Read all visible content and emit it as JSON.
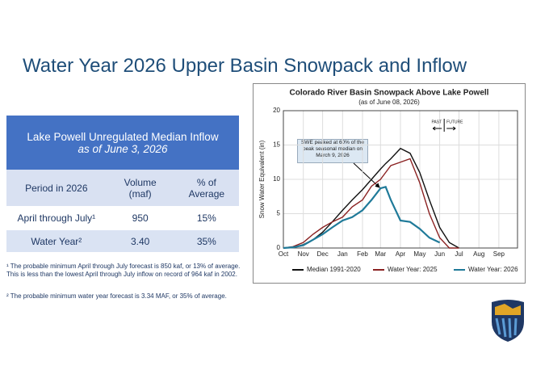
{
  "title": "Water Year 2026 Upper Basin Snowpack and Inflow",
  "table": {
    "title": "Lake Powell Unregulated Median Inflow",
    "subtitle": "as of June 3, 2026",
    "header": [
      "Period in 2026",
      "Volume (maf)",
      "% of Average"
    ],
    "rows": [
      [
        "April through July¹",
        "950",
        "15%"
      ],
      [
        "Water Year²",
        "3.40",
        "35%"
      ]
    ]
  },
  "footnotes": [
    "¹ The probable minimum April through July forecast is 850 kaf, or 13% of average. This is less than the lowest April through July inflow on record of 964 kaf in 2002.",
    "² The probable minimum water year forecast is 3.34 MAF, or 35% of average."
  ],
  "chart_data": {
    "type": "line",
    "title": "Colorado River Basin Snowpack Above Lake Powell",
    "subtitle": "(as of June 08, 2026)",
    "y_label": "Snow Water Equivalent (in)",
    "annotation": "SWE peaked at 60% of the peak seasonal median on March 9, 2026",
    "past_label": "PAST",
    "future_label": "FUTURE",
    "divider": 250,
    "x": [
      0,
      15,
      31,
      46,
      61,
      76,
      92,
      107,
      123,
      137,
      151,
      159,
      167,
      182,
      197,
      212,
      227,
      243,
      258,
      273
    ],
    "xlim": [
      0,
      364
    ],
    "xticks": [
      {
        "value": 0,
        "label": "Oct"
      },
      {
        "value": 31,
        "label": "Nov"
      },
      {
        "value": 61,
        "label": "Dec"
      },
      {
        "value": 92,
        "label": "Jan"
      },
      {
        "value": 123,
        "label": "Feb"
      },
      {
        "value": 151,
        "label": "Mar"
      },
      {
        "value": 182,
        "label": "Apr"
      },
      {
        "value": 212,
        "label": "May"
      },
      {
        "value": 243,
        "label": "Jun"
      },
      {
        "value": 273,
        "label": "Jul"
      },
      {
        "value": 304,
        "label": "Aug"
      },
      {
        "value": 335,
        "label": "Sep"
      }
    ],
    "ylim": [
      0,
      20
    ],
    "yticks": [
      0,
      5,
      10,
      15,
      20
    ],
    "grid": true,
    "series": [
      {
        "name": "Median 1991-2020",
        "color": "#111111",
        "values": [
          0,
          0.1,
          0.5,
          1.2,
          2.3,
          3.8,
          5.5,
          7,
          8.5,
          10,
          11.5,
          12.3,
          13,
          14.5,
          13.8,
          11,
          7,
          3,
          0.8,
          0
        ]
      },
      {
        "name": "Water Year: 2025",
        "color": "#8b2222",
        "values": [
          0,
          0.2,
          0.8,
          2,
          3,
          3.8,
          4.5,
          6,
          7,
          9,
          10,
          11,
          12,
          12.5,
          13,
          9.5,
          5,
          1.5,
          0,
          0
        ]
      },
      {
        "name": "Water Year: 2026",
        "color": "#1f7a99",
        "values": [
          0,
          0.1,
          0.4,
          1.2,
          2,
          3,
          4,
          4.5,
          5.5,
          7,
          8.7,
          8.9,
          7,
          4,
          3.8,
          2.8,
          1.5,
          0.8,
          null,
          null
        ]
      }
    ]
  }
}
